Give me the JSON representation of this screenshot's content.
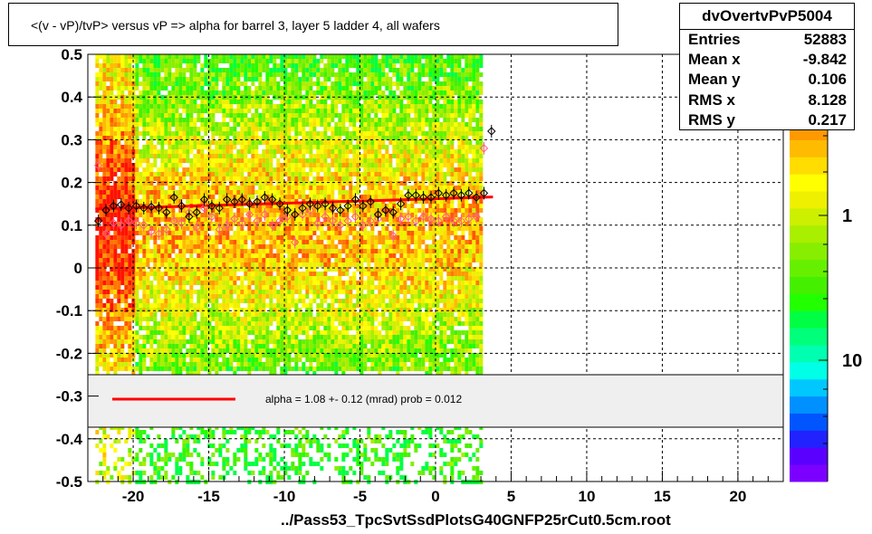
{
  "title": "<(v - vP)/tvP> versus   vP => alpha for barrel 3, layer 5 ladder 4, all wafers",
  "x_axis_title": "../Pass53_TpcSvtSsdPlotsG40GNFP25rCut0.5cm.root",
  "stats": {
    "name": "dvOvertvPvP5004",
    "rows": [
      {
        "key": "Entries",
        "value": "52883"
      },
      {
        "key": "Mean x",
        "value": "-9.842"
      },
      {
        "key": "Mean y",
        "value": "0.106"
      },
      {
        "key": "RMS x",
        "value": "8.128"
      },
      {
        "key": "RMS y",
        "value": "0.217"
      }
    ]
  },
  "fit_legend": "alpha =    1.08 +-  0.12 (mrad) prob = 0.012",
  "chart_data": {
    "type": "heatmap",
    "xlim": [
      -23,
      23
    ],
    "ylim": [
      -0.5,
      0.5
    ],
    "x_ticks": [
      -20,
      -15,
      -10,
      -5,
      0,
      5,
      10,
      15,
      20
    ],
    "y_ticks": [
      -0.5,
      -0.4,
      -0.3,
      -0.2,
      -0.1,
      0,
      0.1,
      0.2,
      0.3,
      0.4,
      0.5
    ],
    "x_tick_labels": [
      "-20",
      "-15",
      "-10",
      "-5",
      "0",
      "5",
      "10",
      "15",
      "20"
    ],
    "y_tick_labels": [
      "-0.5",
      "-0.4",
      "-0.3",
      "-0.2",
      "-0.1",
      "0",
      "0.1",
      "0.2",
      "0.3",
      "0.4",
      "0.5"
    ],
    "data_x_range": [
      -22.5,
      3.0
    ],
    "grid": true,
    "log_z": true,
    "z_labels": [
      "1",
      "10"
    ],
    "palette": [
      "#7b00ff",
      "#5a00ff",
      "#2222ff",
      "#0055ff",
      "#0090ff",
      "#00c8ff",
      "#00ffe6",
      "#00ffb0",
      "#00ff7a",
      "#00ff44",
      "#22ff00",
      "#44f000",
      "#66f000",
      "#88ee00",
      "#aaee00",
      "#ccf000",
      "#eef000",
      "#ffff00",
      "#ffdd00",
      "#ffbb00",
      "#ff9900",
      "#ff7700",
      "#ff5500",
      "#ff3300",
      "#ff1100"
    ],
    "fit_line": {
      "x0": -22.5,
      "x1": 3.8,
      "y0": 0.138,
      "y1": 0.166,
      "color": "#ff0000"
    },
    "profile_black": {
      "x": [
        -22.3,
        -21.8,
        -21.3,
        -20.8,
        -20.3,
        -19.8,
        -19.3,
        -18.8,
        -18.3,
        -17.8,
        -17.3,
        -16.8,
        -16.3,
        -15.8,
        -15.3,
        -14.8,
        -14.3,
        -13.8,
        -13.3,
        -12.8,
        -12.3,
        -11.8,
        -11.3,
        -10.8,
        -10.3,
        -9.8,
        -9.3,
        -8.8,
        -8.3,
        -7.8,
        -7.3,
        -6.8,
        -6.3,
        -5.8,
        -5.3,
        -4.8,
        -4.3,
        -3.8,
        -3.3,
        -2.8,
        -2.3,
        -1.8,
        -1.3,
        -0.8,
        -0.3,
        0.2,
        0.7,
        1.2,
        1.7,
        2.2,
        2.7,
        3.2,
        3.7
      ],
      "y": [
        0.11,
        0.135,
        0.145,
        0.148,
        0.14,
        0.145,
        0.14,
        0.143,
        0.14,
        0.13,
        0.165,
        0.145,
        0.12,
        0.13,
        0.16,
        0.145,
        0.14,
        0.16,
        0.155,
        0.16,
        0.15,
        0.155,
        0.165,
        0.16,
        0.15,
        0.135,
        0.125,
        0.14,
        0.15,
        0.145,
        0.15,
        0.14,
        0.135,
        0.145,
        0.16,
        0.145,
        0.155,
        0.125,
        0.135,
        0.13,
        0.15,
        0.17,
        0.17,
        0.165,
        0.165,
        0.175,
        0.17,
        0.175,
        0.17,
        0.175,
        0.165,
        0.175,
        0.32
      ]
    },
    "profile_pink": {
      "x": [
        -22.3,
        -21.8,
        -21.3,
        -20.8,
        -20.3,
        -19.8,
        -19.3,
        -18.8,
        -18.3,
        -17.8,
        -17.3,
        -16.8,
        -16.3,
        -15.8,
        -15.3,
        -14.8,
        -14.3,
        -13.8,
        -13.3,
        -12.8,
        -12.3,
        -11.8,
        -11.3,
        -10.8,
        -10.3,
        -9.8,
        -9.3,
        -8.8,
        -8.3,
        -7.8,
        -7.3,
        -6.8,
        -6.3,
        -5.8,
        -5.3,
        -4.8,
        -4.3,
        -3.8,
        -3.3,
        -2.8,
        -2.3,
        -1.8,
        -1.3,
        -0.8,
        -0.3,
        0.2,
        0.7,
        1.2,
        1.7,
        2.2,
        2.7,
        3.2
      ],
      "y": [
        0.24,
        0.08,
        0.105,
        0.1,
        0.11,
        0.105,
        0.1,
        0.085,
        0.08,
        0.09,
        0.11,
        0.105,
        0.13,
        0.095,
        0.14,
        0.12,
        0.09,
        0.1,
        0.115,
        0.105,
        0.125,
        0.11,
        0.125,
        0.1,
        0.11,
        0.12,
        0.06,
        0.125,
        0.135,
        0.105,
        0.12,
        0.11,
        0.1,
        0.11,
        0.12,
        0.1,
        0.11,
        0.115,
        0.135,
        0.075,
        0.115,
        0.12,
        0.11,
        0.12,
        0.115,
        0.11,
        0.12,
        0.11,
        0.11,
        0.115,
        0.12,
        0.28
      ]
    }
  }
}
